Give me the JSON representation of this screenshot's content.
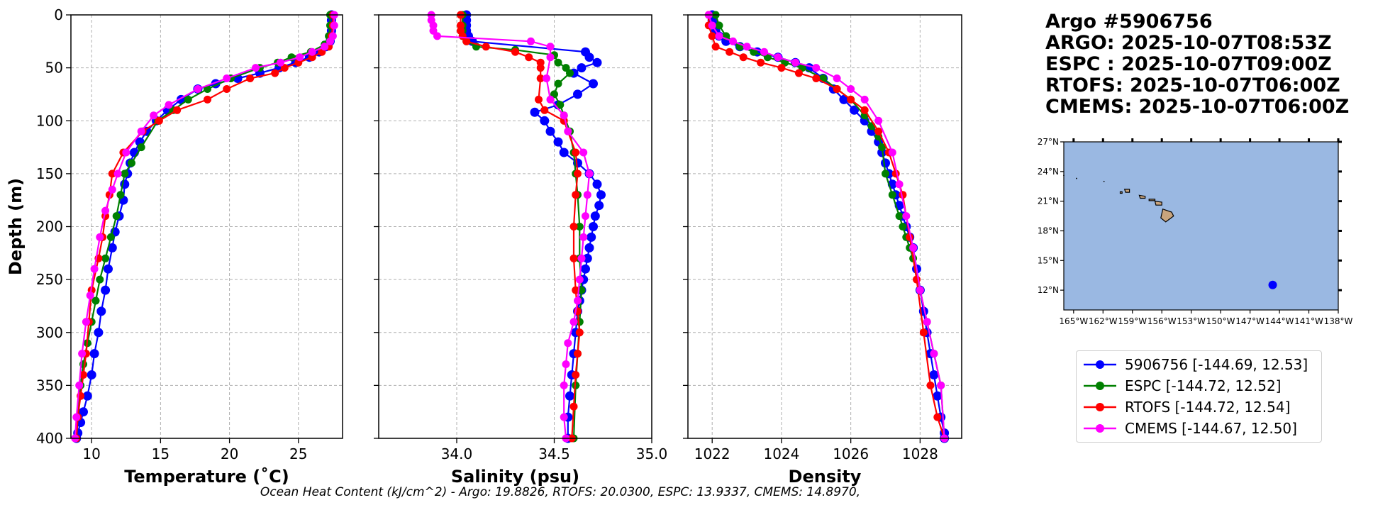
{
  "chart_data": {
    "type": "line",
    "figure_title": [
      "Argo #5906756",
      "ARGO: 2025-10-07T08:53Z",
      "ESPC : 2025-10-07T09:00Z",
      "RTOFS: 2025-10-07T06:00Z",
      "CMEMS: 2025-10-07T06:00Z"
    ],
    "footer": "Ocean Heat Content (kJ/cm^2) - Argo: 19.8826,  RTOFS: 20.0300,  ESPC: 13.9337,  CMEMS: 14.8970,",
    "ylabel": "Depth (m)",
    "ylim": [
      400,
      0
    ],
    "yticks": [
      "0",
      "50",
      "100",
      "150",
      "200",
      "250",
      "300",
      "350",
      "400"
    ],
    "ytick_values": [
      0,
      50,
      100,
      150,
      200,
      250,
      300,
      350,
      400
    ],
    "grid": true,
    "colors": {
      "argo": "#0000ff",
      "espc": "#008000",
      "rtofs": "#ff0000",
      "cmems": "#ff00ff"
    },
    "panels": [
      {
        "xlabel": "Temperature (˚C)",
        "xlim": [
          8.5,
          28.2
        ],
        "xticks": [
          "10",
          "15",
          "20",
          "25"
        ],
        "xtick_values": [
          10,
          15,
          20,
          25
        ],
        "series": [
          {
            "name": "argo",
            "x": [
              27.4,
              27.4,
              27.4,
              27.4,
              27.4,
              27.3,
              27.0,
              26.5,
              25.8,
              24.8,
              23.6,
              22.2,
              20.6,
              19.0,
              17.7,
              16.5,
              15.5,
              14.7,
              14.0,
              13.5,
              13.1,
              12.8,
              12.6,
              12.4,
              12.3,
              12.0,
              11.7,
              11.5,
              11.2,
              11.0,
              10.7,
              10.5,
              10.2,
              10.0,
              9.7,
              9.4,
              9.2,
              9.0,
              8.9
            ],
            "y": [
              0,
              5,
              10,
              15,
              20,
              25,
              30,
              35,
              40,
              45,
              50,
              55,
              60,
              65,
              70,
              80,
              90,
              100,
              110,
              120,
              130,
              140,
              150,
              160,
              175,
              190,
              205,
              220,
              240,
              260,
              280,
              300,
              320,
              340,
              360,
              375,
              385,
              395,
              400
            ]
          },
          {
            "name": "espc",
            "x": [
              27.3,
              27.3,
              27.2,
              26.9,
              25.9,
              24.5,
              23.5,
              22.2,
              20.1,
              18.4,
              17.0,
              15.9,
              14.8,
              13.6,
              12.9,
              12.4,
              12.1,
              11.8,
              11.4,
              11.0,
              10.6,
              10.3,
              10.0,
              9.7,
              9.4,
              9.2,
              9.0,
              8.9
            ],
            "y": [
              0,
              10,
              20,
              28,
              35,
              40,
              45,
              50,
              60,
              70,
              80,
              90,
              100,
              125,
              140,
              150,
              170,
              190,
              210,
              230,
              250,
              270,
              290,
              310,
              330,
              350,
              380,
              400
            ]
          },
          {
            "name": "rtofs",
            "x": [
              27.5,
              27.5,
              27.4,
              27.2,
              26.7,
              26.0,
              25.0,
              24.0,
              23.3,
              21.5,
              19.8,
              18.4,
              16.2,
              14.9,
              13.7,
              12.3,
              11.5,
              11.3,
              11.0,
              10.8,
              10.5,
              10.0,
              9.8,
              9.6,
              9.4,
              9.2,
              9.0,
              8.9
            ],
            "y": [
              0,
              10,
              20,
              30,
              35,
              40,
              45,
              50,
              55,
              60,
              70,
              80,
              90,
              100,
              110,
              130,
              150,
              170,
              190,
              210,
              230,
              260,
              290,
              320,
              340,
              360,
              380,
              400
            ]
          },
          {
            "name": "cmems",
            "x": [
              27.6,
              27.6,
              27.5,
              27.3,
              26.9,
              26.0,
              25.1,
              23.7,
              21.9,
              19.8,
              17.7,
              15.6,
              14.5,
              13.6,
              12.5,
              11.9,
              11.5,
              11.0,
              10.6,
              10.2,
              9.9,
              9.6,
              9.3,
              9.1,
              8.9,
              8.8
            ],
            "y": [
              0,
              10,
              20,
              25,
              30,
              35,
              40,
              45,
              50,
              60,
              70,
              85,
              95,
              110,
              130,
              150,
              165,
              185,
              210,
              240,
              265,
              290,
              320,
              350,
              380,
              400
            ]
          }
        ]
      },
      {
        "xlabel": "Salinity (psu)",
        "xlim": [
          33.6,
          35.0
        ],
        "xticks": [
          "34.0",
          "34.5",
          "35.0"
        ],
        "xtick_values": [
          34.0,
          34.5,
          35.0
        ],
        "series": [
          {
            "name": "argo",
            "x": [
              34.05,
              34.05,
              34.05,
              34.05,
              34.06,
              34.08,
              34.66,
              34.68,
              34.72,
              34.64,
              34.6,
              34.7,
              34.62,
              34.52,
              34.4,
              34.45,
              34.48,
              34.52,
              34.55,
              34.62,
              34.68,
              34.72,
              34.74,
              34.73,
              34.71,
              34.7,
              34.69,
              34.68,
              34.67,
              34.66,
              34.65,
              34.64,
              34.63,
              34.62,
              34.61,
              34.6,
              34.59,
              34.58,
              34.57,
              34.57
            ],
            "y": [
              0,
              5,
              10,
              15,
              20,
              25,
              35,
              40,
              45,
              50,
              55,
              65,
              75,
              85,
              92,
              100,
              110,
              120,
              130,
              140,
              150,
              160,
              170,
              180,
              190,
              200,
              210,
              220,
              230,
              240,
              250,
              260,
              270,
              280,
              300,
              320,
              340,
              360,
              380,
              400
            ]
          },
          {
            "name": "espc",
            "x": [
              34.03,
              34.03,
              34.03,
              34.03,
              34.05,
              34.1,
              34.3,
              34.5,
              34.52,
              34.56,
              34.58,
              34.52,
              34.5,
              34.53,
              34.55,
              34.58,
              34.6,
              34.61,
              34.62,
              34.63,
              34.63,
              34.64,
              34.63,
              34.62,
              34.61,
              34.6
            ],
            "y": [
              0,
              10,
              15,
              20,
              25,
              30,
              33,
              38,
              45,
              50,
              55,
              65,
              75,
              85,
              95,
              110,
              130,
              150,
              170,
              200,
              230,
              260,
              290,
              320,
              350,
              400
            ]
          },
          {
            "name": "rtofs",
            "x": [
              34.02,
              34.02,
              34.02,
              34.03,
              34.05,
              34.15,
              34.3,
              34.37,
              34.43,
              34.43,
              34.43,
              34.42,
              34.45,
              34.55,
              34.61,
              34.62,
              34.61,
              34.6,
              34.6,
              34.61,
              34.62,
              34.63,
              34.62,
              34.61,
              34.6,
              34.59
            ],
            "y": [
              0,
              10,
              15,
              20,
              25,
              30,
              35,
              40,
              45,
              50,
              60,
              80,
              90,
              100,
              130,
              150,
              170,
              200,
              230,
              260,
              280,
              300,
              320,
              340,
              370,
              400
            ]
          },
          {
            "name": "cmems",
            "x": [
              33.87,
              33.87,
              33.88,
              33.88,
              33.9,
              34.38,
              34.48,
              34.48,
              34.46,
              34.48,
              34.55,
              34.57,
              34.65,
              34.68,
              34.67,
              34.66,
              34.65,
              34.64,
              34.63,
              34.62,
              34.6,
              34.57,
              34.56,
              34.55,
              34.55,
              34.56
            ],
            "y": [
              0,
              5,
              10,
              15,
              20,
              25,
              30,
              40,
              60,
              80,
              95,
              110,
              130,
              150,
              170,
              190,
              210,
              230,
              250,
              270,
              290,
              310,
              330,
              350,
              380,
              400
            ]
          }
        ]
      },
      {
        "xlabel": "Density",
        "xlim": [
          1021.3,
          1029.2
        ],
        "xticks": [
          "1022",
          "1024",
          "1026",
          "1028"
        ],
        "xtick_values": [
          1022,
          1024,
          1026,
          1028
        ],
        "series": [
          {
            "name": "argo",
            "x": [
              1022.0,
              1022.0,
              1022.1,
              1022.1,
              1022.2,
              1022.4,
              1022.8,
              1023.3,
              1023.9,
              1024.4,
              1024.8,
              1025.2,
              1025.5,
              1025.8,
              1026.1,
              1026.4,
              1026.6,
              1026.8,
              1026.9,
              1027.0,
              1027.1,
              1027.2,
              1027.3,
              1027.4,
              1027.5,
              1027.6,
              1027.7,
              1027.8,
              1027.9,
              1028.0,
              1028.1,
              1028.2,
              1028.3,
              1028.4,
              1028.5,
              1028.6,
              1028.7,
              1028.7
            ],
            "y": [
              0,
              5,
              10,
              15,
              20,
              25,
              30,
              35,
              40,
              45,
              50,
              60,
              70,
              80,
              90,
              100,
              110,
              120,
              130,
              140,
              150,
              160,
              170,
              180,
              190,
              200,
              210,
              220,
              240,
              260,
              280,
              300,
              320,
              340,
              360,
              380,
              395,
              400
            ]
          },
          {
            "name": "espc",
            "x": [
              1022.1,
              1022.2,
              1022.4,
              1022.8,
              1023.2,
              1023.6,
              1024.1,
              1024.6,
              1025.2,
              1025.6,
              1026.0,
              1026.4,
              1026.6,
              1026.8,
              1026.9,
              1027.0,
              1027.2,
              1027.4,
              1027.5,
              1027.6,
              1027.7,
              1027.8,
              1028.0,
              1028.2,
              1028.4,
              1028.6,
              1028.7
            ],
            "y": [
              0,
              10,
              20,
              30,
              35,
              40,
              45,
              50,
              60,
              70,
              80,
              95,
              105,
              115,
              125,
              150,
              170,
              190,
              200,
              210,
              220,
              230,
              260,
              290,
              320,
              350,
              400
            ]
          },
          {
            "name": "rtofs",
            "x": [
              1021.9,
              1021.9,
              1022.0,
              1022.1,
              1022.5,
              1022.9,
              1023.4,
              1024.0,
              1024.5,
              1025.0,
              1025.6,
              1026.0,
              1026.4,
              1026.8,
              1027.1,
              1027.3,
              1027.5,
              1027.7,
              1027.9,
              1028.1,
              1028.3,
              1028.5,
              1028.7
            ],
            "y": [
              0,
              10,
              20,
              30,
              35,
              40,
              45,
              50,
              55,
              60,
              70,
              80,
              90,
              110,
              130,
              150,
              170,
              210,
              250,
              300,
              350,
              380,
              400
            ]
          },
          {
            "name": "cmems",
            "x": [
              1021.9,
              1022.0,
              1022.2,
              1022.6,
              1023.0,
              1023.5,
              1023.9,
              1024.4,
              1025.0,
              1025.6,
              1026.0,
              1026.4,
              1026.8,
              1027.2,
              1027.4,
              1027.6,
              1027.8,
              1028.0,
              1028.2,
              1028.4,
              1028.6,
              1028.7
            ],
            "y": [
              0,
              10,
              20,
              25,
              30,
              35,
              40,
              45,
              50,
              60,
              70,
              80,
              100,
              130,
              160,
              190,
              220,
              260,
              290,
              320,
              350,
              400
            ]
          }
        ]
      }
    ],
    "legend": {
      "position": "lower-right",
      "entries": [
        {
          "name": "argo",
          "label": "5906756 [-144.69, 12.53]"
        },
        {
          "name": "espc",
          "label": "ESPC [-144.72, 12.52]"
        },
        {
          "name": "rtofs",
          "label": "RTOFS [-144.72, 12.54]"
        },
        {
          "name": "cmems",
          "label": "CMEMS [-144.67, 12.50]"
        }
      ]
    },
    "inset_map": {
      "type": "map",
      "lon_range": [
        -166,
        -138
      ],
      "lat_range": [
        10,
        27
      ],
      "lon_ticks": [
        "165°W",
        "162°W",
        "159°W",
        "156°W",
        "153°W",
        "150°W",
        "147°W",
        "144°W",
        "141°W",
        "138°W"
      ],
      "lon_tick_values": [
        -165,
        -162,
        -159,
        -156,
        -153,
        -150,
        -147,
        -144,
        -141,
        -138
      ],
      "lat_ticks": [
        "12°N",
        "15°N",
        "18°N",
        "21°N",
        "24°N",
        "27°N"
      ],
      "lat_tick_values": [
        12,
        15,
        18,
        21,
        24,
        27
      ],
      "ocean_color": "#9ab8e2",
      "land_color": "#c9a47d",
      "float_position": [
        -144.69,
        12.53
      ]
    }
  }
}
